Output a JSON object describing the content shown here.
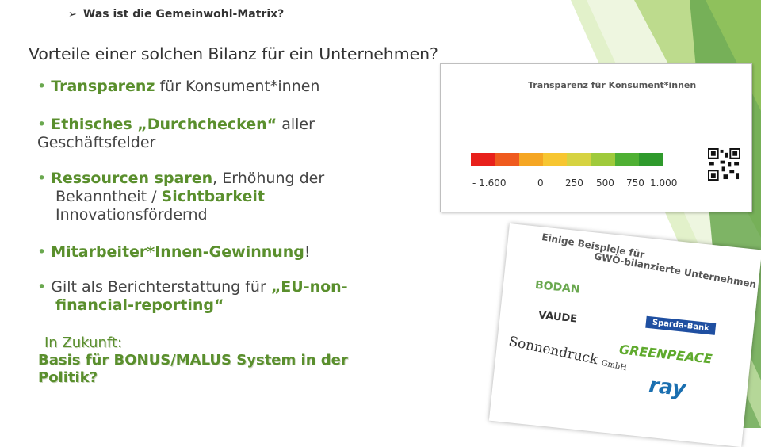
{
  "header": {
    "text": "Was ist die Gemeinwohl-Matrix?"
  },
  "title": "Vorteile einer solchen Bilanz für ein Unternehmen?",
  "bullets": {
    "b1": {
      "dot": "•",
      "bold": "Transparenz",
      "rest": " für Konsument*innen"
    },
    "b2": {
      "dot": "•",
      "bold": "Ethisches „Durchchecken“",
      "rest": " aller",
      "line2": "Geschäftsfelder"
    },
    "b3": {
      "dot": "•",
      "bold": "Ressourcen sparen",
      "rest": ", Erhöhung der",
      "line2a": "Bekanntheit / ",
      "line2b": "Sichtbarkeit",
      "line3": "Innovationsfördernd"
    },
    "b4": {
      "dot": "•",
      "bold": "Mitarbeiter*Innen-Gewinnung",
      "rest": "!"
    },
    "b5": {
      "dot": "•",
      "rest": " Gilt als Berichterstattung für ",
      "bold": "„EU-non-",
      "line2": "financial-reporting“"
    }
  },
  "future": {
    "line1": "In Zukunft:",
    "line2": "Basis für BONUS/MALUS System in der",
    "line3": "Politik?"
  },
  "card": {
    "title": "Transparenz für Konsument*innen",
    "ticks": [
      "- 1.600",
      "0",
      "250",
      "500",
      "750",
      "1.000"
    ],
    "scale_colors": [
      "#e8201b",
      "#ef5a1e",
      "#f5a623",
      "#f7c631",
      "#d6d341",
      "#9fca3b",
      "#4fb033",
      "#2f9a2c"
    ],
    "qr_icon": "qr-code-icon"
  },
  "photo": {
    "title1": "Einige Beispiele für",
    "title2": "GWÖ-bilanzierte Unternehmen",
    "logos": {
      "bodan": "BODAN",
      "vaude": "VAUDE",
      "sparda": "Sparda-Bank",
      "sonnendruck": "Sonnendruck",
      "sonnendruck_suffix": "GmbH",
      "greenpeace": "GREENPEACE",
      "ray": "ray"
    }
  }
}
